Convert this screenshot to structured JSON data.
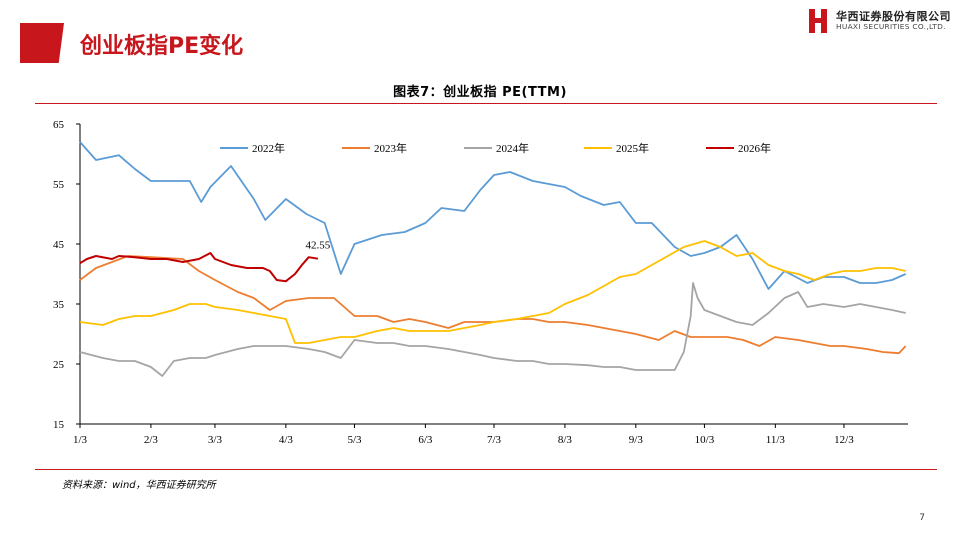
{
  "header": {
    "title": "创业板指PE变化",
    "logo_cn": "华西证券股份有限公司",
    "logo_en": "HUAXI SECURITIES CO.,LTD."
  },
  "figure": {
    "title": "图表7：创业板指 PE(TTM)",
    "source": "资料来源：wind，华西证券研究所"
  },
  "page_number": "7",
  "colors": {
    "brand_red": "#c8161d"
  },
  "chart_data": {
    "type": "line",
    "x_ticks": [
      "1/3",
      "2/3",
      "3/3",
      "4/3",
      "5/3",
      "6/3",
      "7/3",
      "8/3",
      "9/3",
      "10/3",
      "11/3",
      "12/3"
    ],
    "ylim": [
      15,
      65
    ],
    "y_ticks": [
      15,
      25,
      35,
      45,
      55,
      65
    ],
    "grid": false,
    "legend_position": "top",
    "annotations": [
      {
        "text": "42.55",
        "x": "4/17",
        "y": 42.55
      }
    ],
    "series": [
      {
        "name": "2022年",
        "color": "#5b9bd5",
        "points": [
          [
            "1/3",
            62.0
          ],
          [
            "1/10",
            59.0
          ],
          [
            "1/20",
            59.8
          ],
          [
            "1/27",
            57.5
          ],
          [
            "2/3",
            55.5
          ],
          [
            "2/20",
            55.5
          ],
          [
            "2/25",
            52.0
          ],
          [
            "3/1",
            54.5
          ],
          [
            "3/10",
            58.0
          ],
          [
            "3/20",
            52.5
          ],
          [
            "3/25",
            49.0
          ],
          [
            "4/3",
            52.5
          ],
          [
            "4/12",
            50.0
          ],
          [
            "4/20",
            48.5
          ],
          [
            "4/27",
            40.0
          ],
          [
            "5/3",
            45.0
          ],
          [
            "5/15",
            46.5
          ],
          [
            "5/25",
            47.0
          ],
          [
            "6/3",
            48.5
          ],
          [
            "6/10",
            51.0
          ],
          [
            "6/20",
            50.5
          ],
          [
            "6/27",
            54.0
          ],
          [
            "7/3",
            56.5
          ],
          [
            "7/10",
            57.0
          ],
          [
            "7/20",
            55.5
          ],
          [
            "7/27",
            55.0
          ],
          [
            "8/3",
            54.5
          ],
          [
            "8/10",
            53.0
          ],
          [
            "8/20",
            51.5
          ],
          [
            "8/27",
            52.0
          ],
          [
            "9/3",
            48.5
          ],
          [
            "9/10",
            48.5
          ],
          [
            "9/20",
            44.5
          ],
          [
            "9/27",
            43.0
          ],
          [
            "10/3",
            43.5
          ],
          [
            "10/10",
            44.5
          ],
          [
            "10/17",
            46.5
          ],
          [
            "10/24",
            42.5
          ],
          [
            "10/31",
            37.5
          ],
          [
            "11/7",
            40.5
          ],
          [
            "11/17",
            38.5
          ],
          [
            "11/24",
            39.5
          ],
          [
            "12/3",
            39.5
          ],
          [
            "12/10",
            38.5
          ],
          [
            "12/17",
            38.5
          ],
          [
            "12/24",
            39.0
          ],
          [
            "12/30",
            40.0
          ]
        ]
      },
      {
        "name": "2023年",
        "color": "#ed7d31",
        "points": [
          [
            "1/3",
            39.0
          ],
          [
            "1/10",
            41.0
          ],
          [
            "1/17",
            42.0
          ],
          [
            "1/24",
            43.0
          ],
          [
            "2/3",
            42.8
          ],
          [
            "2/17",
            42.5
          ],
          [
            "2/24",
            40.5
          ],
          [
            "3/3",
            39.0
          ],
          [
            "3/13",
            37.0
          ],
          [
            "3/20",
            36.0
          ],
          [
            "3/27",
            34.0
          ],
          [
            "4/3",
            35.5
          ],
          [
            "4/13",
            36.0
          ],
          [
            "4/24",
            36.0
          ],
          [
            "5/3",
            33.0
          ],
          [
            "5/13",
            33.0
          ],
          [
            "5/20",
            32.0
          ],
          [
            "5/27",
            32.5
          ],
          [
            "6/3",
            32.0
          ],
          [
            "6/13",
            31.0
          ],
          [
            "6/20",
            32.0
          ],
          [
            "6/27",
            32.0
          ],
          [
            "7/3",
            32.0
          ],
          [
            "7/13",
            32.5
          ],
          [
            "7/20",
            32.5
          ],
          [
            "7/27",
            32.0
          ],
          [
            "8/3",
            32.0
          ],
          [
            "8/13",
            31.5
          ],
          [
            "8/20",
            31.0
          ],
          [
            "8/27",
            30.5
          ],
          [
            "9/3",
            30.0
          ],
          [
            "9/13",
            29.0
          ],
          [
            "9/20",
            30.5
          ],
          [
            "9/27",
            29.5
          ],
          [
            "10/3",
            29.5
          ],
          [
            "10/13",
            29.5
          ],
          [
            "10/20",
            29.0
          ],
          [
            "10/27",
            28.0
          ],
          [
            "11/3",
            29.5
          ],
          [
            "11/13",
            29.0
          ],
          [
            "11/20",
            28.5
          ],
          [
            "11/27",
            28.0
          ],
          [
            "12/3",
            28.0
          ],
          [
            "12/13",
            27.5
          ],
          [
            "12/20",
            27.0
          ],
          [
            "12/27",
            26.8
          ],
          [
            "12/30",
            28.0
          ]
        ]
      },
      {
        "name": "2024年",
        "color": "#a5a5a5",
        "points": [
          [
            "1/3",
            27.0
          ],
          [
            "1/13",
            26.0
          ],
          [
            "1/20",
            25.5
          ],
          [
            "1/27",
            25.5
          ],
          [
            "2/3",
            24.5
          ],
          [
            "2/8",
            23.0
          ],
          [
            "2/13",
            25.5
          ],
          [
            "2/20",
            26.0
          ],
          [
            "2/27",
            26.0
          ],
          [
            "3/3",
            26.5
          ],
          [
            "3/13",
            27.5
          ],
          [
            "3/20",
            28.0
          ],
          [
            "3/27",
            28.0
          ],
          [
            "4/3",
            28.0
          ],
          [
            "4/13",
            27.5
          ],
          [
            "4/20",
            27.0
          ],
          [
            "4/27",
            26.0
          ],
          [
            "5/3",
            29.0
          ],
          [
            "5/13",
            28.5
          ],
          [
            "5/20",
            28.5
          ],
          [
            "5/27",
            28.0
          ],
          [
            "6/3",
            28.0
          ],
          [
            "6/13",
            27.5
          ],
          [
            "6/20",
            27.0
          ],
          [
            "6/27",
            26.5
          ],
          [
            "7/3",
            26.0
          ],
          [
            "7/13",
            25.5
          ],
          [
            "7/20",
            25.5
          ],
          [
            "7/27",
            25.0
          ],
          [
            "8/3",
            25.0
          ],
          [
            "8/13",
            24.8
          ],
          [
            "8/20",
            24.5
          ],
          [
            "8/27",
            24.5
          ],
          [
            "9/3",
            24.0
          ],
          [
            "9/13",
            24.0
          ],
          [
            "9/20",
            24.0
          ],
          [
            "9/24",
            27.0
          ],
          [
            "9/26",
            31.0
          ],
          [
            "9/27",
            33.0
          ],
          [
            "9/28",
            38.5
          ],
          [
            "9/30",
            36.0
          ],
          [
            "10/3",
            34.0
          ],
          [
            "10/10",
            33.0
          ],
          [
            "10/17",
            32.0
          ],
          [
            "10/24",
            31.5
          ],
          [
            "10/31",
            33.5
          ],
          [
            "11/7",
            36.0
          ],
          [
            "11/13",
            37.0
          ],
          [
            "11/17",
            34.5
          ],
          [
            "11/24",
            35.0
          ],
          [
            "12/3",
            34.5
          ],
          [
            "12/10",
            35.0
          ],
          [
            "12/17",
            34.5
          ],
          [
            "12/24",
            34.0
          ],
          [
            "12/30",
            33.5
          ]
        ]
      },
      {
        "name": "2025年",
        "color": "#ffc000",
        "points": [
          [
            "1/3",
            32.0
          ],
          [
            "1/13",
            31.5
          ],
          [
            "1/20",
            32.5
          ],
          [
            "1/27",
            33.0
          ],
          [
            "2/3",
            33.0
          ],
          [
            "2/13",
            34.0
          ],
          [
            "2/20",
            35.0
          ],
          [
            "2/27",
            35.0
          ],
          [
            "3/3",
            34.5
          ],
          [
            "3/13",
            34.0
          ],
          [
            "3/20",
            33.5
          ],
          [
            "3/27",
            33.0
          ],
          [
            "4/3",
            32.5
          ],
          [
            "4/7",
            28.5
          ],
          [
            "4/13",
            28.5
          ],
          [
            "4/20",
            29.0
          ],
          [
            "4/27",
            29.5
          ],
          [
            "5/3",
            29.5
          ],
          [
            "5/13",
            30.5
          ],
          [
            "5/20",
            31.0
          ],
          [
            "5/27",
            30.5
          ],
          [
            "6/3",
            30.5
          ],
          [
            "6/13",
            30.5
          ],
          [
            "6/20",
            31.0
          ],
          [
            "6/27",
            31.5
          ],
          [
            "7/3",
            32.0
          ],
          [
            "7/13",
            32.5
          ],
          [
            "7/20",
            33.0
          ],
          [
            "7/27",
            33.5
          ],
          [
            "8/3",
            35.0
          ],
          [
            "8/13",
            36.5
          ],
          [
            "8/20",
            38.0
          ],
          [
            "8/27",
            39.5
          ],
          [
            "9/3",
            40.0
          ],
          [
            "9/10",
            41.5
          ],
          [
            "9/17",
            43.0
          ],
          [
            "9/24",
            44.5
          ],
          [
            "10/3",
            45.5
          ],
          [
            "10/10",
            44.5
          ],
          [
            "10/17",
            43.0
          ],
          [
            "10/24",
            43.5
          ],
          [
            "10/31",
            41.5
          ],
          [
            "11/7",
            40.5
          ],
          [
            "11/13",
            40.0
          ],
          [
            "11/20",
            39.0
          ],
          [
            "11/27",
            40.0
          ],
          [
            "12/3",
            40.5
          ],
          [
            "12/10",
            40.5
          ],
          [
            "12/17",
            41.0
          ],
          [
            "12/24",
            41.0
          ],
          [
            "12/30",
            40.5
          ]
        ]
      },
      {
        "name": "2026年",
        "color": "#c00000",
        "points": [
          [
            "1/3",
            41.8
          ],
          [
            "1/6",
            42.5
          ],
          [
            "1/10",
            43.0
          ],
          [
            "1/17",
            42.5
          ],
          [
            "1/20",
            43.0
          ],
          [
            "1/27",
            42.8
          ],
          [
            "2/3",
            42.5
          ],
          [
            "2/10",
            42.5
          ],
          [
            "2/17",
            42.0
          ],
          [
            "2/24",
            42.5
          ],
          [
            "3/1",
            43.5
          ],
          [
            "3/3",
            42.5
          ],
          [
            "3/10",
            41.5
          ],
          [
            "3/17",
            41.0
          ],
          [
            "3/24",
            41.0
          ],
          [
            "3/27",
            40.5
          ],
          [
            "3/30",
            39.0
          ],
          [
            "4/3",
            38.8
          ],
          [
            "4/7",
            40.0
          ],
          [
            "4/10",
            41.5
          ],
          [
            "4/13",
            42.8
          ],
          [
            "4/17",
            42.55
          ]
        ]
      }
    ]
  }
}
